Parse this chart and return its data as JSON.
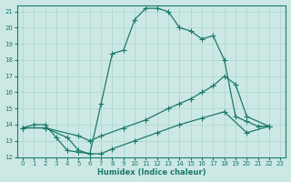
{
  "xlabel": "Humidex (Indice chaleur)",
  "bg_color": "#cce8e4",
  "grid_color": "#aad4ce",
  "line_color": "#1a7a6a",
  "xlim": [
    -0.5,
    23.5
  ],
  "ylim": [
    12,
    21.4
  ],
  "xticks": [
    0,
    1,
    2,
    3,
    4,
    5,
    6,
    7,
    8,
    9,
    10,
    11,
    12,
    13,
    14,
    15,
    16,
    17,
    18,
    19,
    20,
    21,
    22,
    23
  ],
  "yticks": [
    12,
    13,
    14,
    15,
    16,
    17,
    18,
    19,
    20,
    21
  ],
  "line1_x": [
    0,
    1,
    2,
    3,
    4,
    5,
    6,
    7,
    8,
    9,
    10,
    11,
    12,
    13,
    14,
    15,
    16,
    17,
    18,
    19,
    20,
    21,
    22
  ],
  "line1_y": [
    13.8,
    14.0,
    14.0,
    13.2,
    12.4,
    12.3,
    12.2,
    15.3,
    18.4,
    18.6,
    20.5,
    21.2,
    21.2,
    21.0,
    20.0,
    19.8,
    19.3,
    19.5,
    18.0,
    14.5,
    14.2,
    13.9,
    13.9
  ],
  "line2_x": [
    0,
    2,
    5,
    6,
    7,
    9,
    11,
    13,
    14,
    15,
    16,
    17,
    18,
    19,
    20,
    22
  ],
  "line2_y": [
    13.8,
    13.8,
    13.3,
    13.0,
    13.3,
    13.8,
    14.3,
    15.0,
    15.3,
    15.6,
    16.0,
    16.4,
    17.0,
    16.5,
    14.5,
    13.9
  ],
  "line3_x": [
    0,
    2,
    4,
    5,
    6,
    7,
    8,
    10,
    12,
    14,
    16,
    18,
    20,
    22
  ],
  "line3_y": [
    13.8,
    13.8,
    13.2,
    12.4,
    12.2,
    12.2,
    12.5,
    13.0,
    13.5,
    14.0,
    14.4,
    14.8,
    13.5,
    13.9
  ]
}
